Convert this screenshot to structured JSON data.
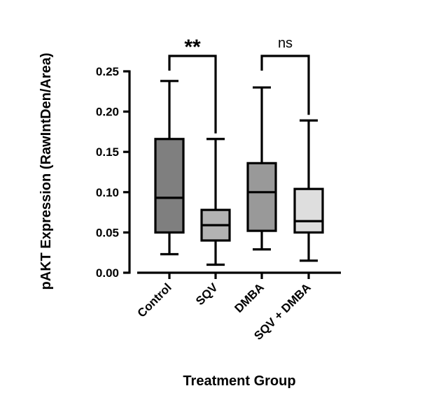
{
  "chart_data": {
    "type": "boxplot",
    "xlabel": "Treatment Group",
    "ylabel": "pAKT Expression (RawIntDen/Area)",
    "ylim": [
      0,
      0.25
    ],
    "yticks": [
      "0.00",
      "0.05",
      "0.10",
      "0.15",
      "0.20",
      "0.25"
    ],
    "ytick_values": [
      0,
      0.05,
      0.1,
      0.15,
      0.2,
      0.25
    ],
    "categories": [
      "Control",
      "SQV",
      "DMBA",
      "SQV + DMBA"
    ],
    "boxes": [
      {
        "name": "Control",
        "min": 0.023,
        "q1": 0.05,
        "median": 0.093,
        "q3": 0.166,
        "max": 0.238,
        "color": "#7f7f7f"
      },
      {
        "name": "SQV",
        "min": 0.01,
        "q1": 0.04,
        "median": 0.059,
        "q3": 0.078,
        "max": 0.166,
        "color": "#b3b3b3"
      },
      {
        "name": "DMBA",
        "min": 0.029,
        "q1": 0.052,
        "median": 0.1,
        "q3": 0.136,
        "max": 0.23,
        "color": "#999999"
      },
      {
        "name": "SQV + DMBA",
        "min": 0.015,
        "q1": 0.05,
        "median": 0.064,
        "q3": 0.104,
        "max": 0.189,
        "color": "#dedede"
      }
    ],
    "comparisons": [
      {
        "groups": [
          "Control",
          "SQV"
        ],
        "label": "**"
      },
      {
        "groups": [
          "DMBA",
          "SQV + DMBA"
        ],
        "label": "ns"
      }
    ],
    "grid": false,
    "legend": "none"
  }
}
